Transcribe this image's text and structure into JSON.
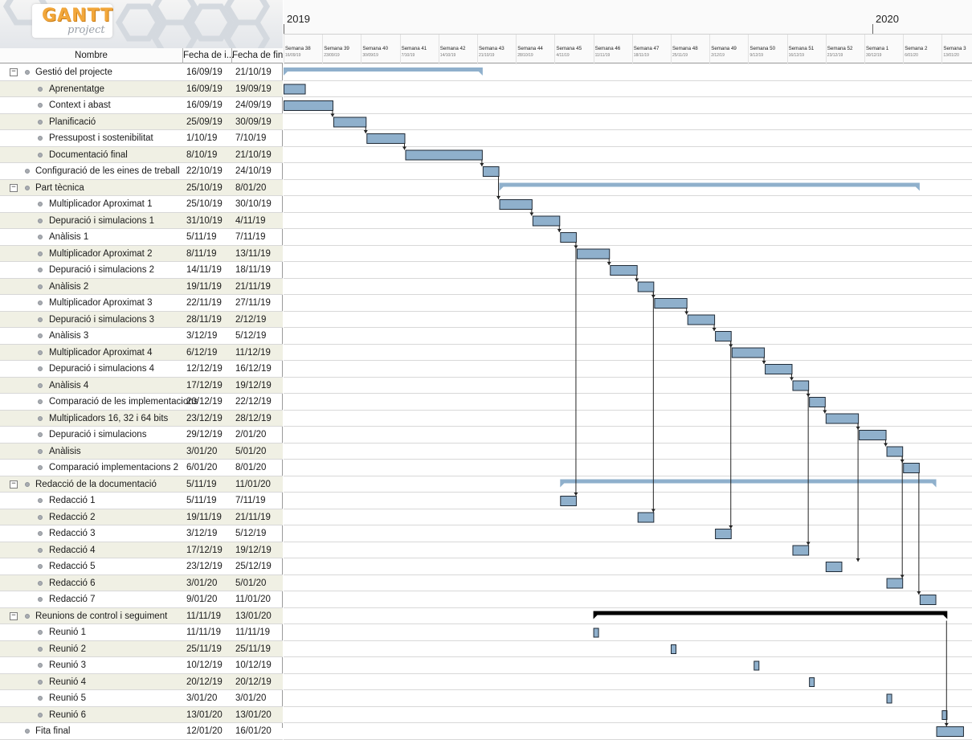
{
  "app": {
    "logo_text": "GANTT",
    "logo_sub": "project"
  },
  "table": {
    "columns": {
      "name": "Nombre",
      "start": "Fecha de i...",
      "end": "Fecha de fin"
    },
    "tasks": [
      {
        "name": "Gestió del projecte",
        "start": "16/09/19",
        "end": "21/10/19",
        "level": 0,
        "toggle": "−"
      },
      {
        "name": "Aprenentatge",
        "start": "16/09/19",
        "end": "19/09/19",
        "level": 1
      },
      {
        "name": "Context i abast",
        "start": "16/09/19",
        "end": "24/09/19",
        "level": 1
      },
      {
        "name": "Planificació",
        "start": "25/09/19",
        "end": "30/09/19",
        "level": 1
      },
      {
        "name": "Pressupost i sostenibilitat",
        "start": "1/10/19",
        "end": "7/10/19",
        "level": 1
      },
      {
        "name": "Documentació final",
        "start": "8/10/19",
        "end": "21/10/19",
        "level": 1
      },
      {
        "name": "Configuració de les eines de treball",
        "start": "22/10/19",
        "end": "24/10/19",
        "level": 0
      },
      {
        "name": "Part tècnica",
        "start": "25/10/19",
        "end": "8/01/20",
        "level": 0,
        "toggle": "−"
      },
      {
        "name": "Multiplicador Aproximat 1",
        "start": "25/10/19",
        "end": "30/10/19",
        "level": 1
      },
      {
        "name": "Depuració i simulacions 1",
        "start": "31/10/19",
        "end": "4/11/19",
        "level": 1
      },
      {
        "name": "Anàlisis 1",
        "start": "5/11/19",
        "end": "7/11/19",
        "level": 1
      },
      {
        "name": "Multiplicador Aproximat 2",
        "start": "8/11/19",
        "end": "13/11/19",
        "level": 1
      },
      {
        "name": "Depuració i simulacions 2",
        "start": "14/11/19",
        "end": "18/11/19",
        "level": 1
      },
      {
        "name": "Anàlisis 2",
        "start": "19/11/19",
        "end": "21/11/19",
        "level": 1
      },
      {
        "name": "Multiplicador Aproximat 3",
        "start": "22/11/19",
        "end": "27/11/19",
        "level": 1
      },
      {
        "name": "Depuració i simulacions 3",
        "start": "28/11/19",
        "end": "2/12/19",
        "level": 1
      },
      {
        "name": "Anàlisis 3",
        "start": "3/12/19",
        "end": "5/12/19",
        "level": 1
      },
      {
        "name": "Multiplicador Aproximat 4",
        "start": "6/12/19",
        "end": "11/12/19",
        "level": 1
      },
      {
        "name": "Depuració i simulacions 4",
        "start": "12/12/19",
        "end": "16/12/19",
        "level": 1
      },
      {
        "name": "Anàlisis 4",
        "start": "17/12/19",
        "end": "19/12/19",
        "level": 1
      },
      {
        "name": "Comparació de les implementacions",
        "start": "20/12/19",
        "end": "22/12/19",
        "level": 1
      },
      {
        "name": "Multiplicadors 16, 32 i 64 bits",
        "start": "23/12/19",
        "end": "28/12/19",
        "level": 1
      },
      {
        "name": "Depuració i simulacions",
        "start": "29/12/19",
        "end": "2/01/20",
        "level": 1
      },
      {
        "name": "Anàlisis",
        "start": "3/01/20",
        "end": "5/01/20",
        "level": 1
      },
      {
        "name": "Comparació implementacions 2",
        "start": "6/01/20",
        "end": "8/01/20",
        "level": 1
      },
      {
        "name": "Redacció de la documentació",
        "start": "5/11/19",
        "end": "11/01/20",
        "level": 0,
        "toggle": "−"
      },
      {
        "name": "Redacció 1",
        "start": "5/11/19",
        "end": "7/11/19",
        "level": 1
      },
      {
        "name": "Redacció 2",
        "start": "19/11/19",
        "end": "21/11/19",
        "level": 1
      },
      {
        "name": "Redacció 3",
        "start": "3/12/19",
        "end": "5/12/19",
        "level": 1
      },
      {
        "name": "Redacció 4",
        "start": "17/12/19",
        "end": "19/12/19",
        "level": 1
      },
      {
        "name": "Redacció 5",
        "start": "23/12/19",
        "end": "25/12/19",
        "level": 1
      },
      {
        "name": "Redacció 6",
        "start": "3/01/20",
        "end": "5/01/20",
        "level": 1
      },
      {
        "name": "Redacció 7",
        "start": "9/01/20",
        "end": "11/01/20",
        "level": 1
      },
      {
        "name": "Reunions de control i seguiment",
        "start": "11/11/19",
        "end": "13/01/20",
        "level": 0,
        "toggle": "−"
      },
      {
        "name": "Reunió 1",
        "start": "11/11/19",
        "end": "11/11/19",
        "level": 1
      },
      {
        "name": "Reunió 2",
        "start": "25/11/19",
        "end": "25/11/19",
        "level": 1
      },
      {
        "name": "Reunió 3",
        "start": "10/12/19",
        "end": "10/12/19",
        "level": 1
      },
      {
        "name": "Reunió 4",
        "start": "20/12/19",
        "end": "20/12/19",
        "level": 1
      },
      {
        "name": "Reunió 5",
        "start": "3/01/20",
        "end": "3/01/20",
        "level": 1
      },
      {
        "name": "Reunió 6",
        "start": "13/01/20",
        "end": "13/01/20",
        "level": 1
      },
      {
        "name": "Fita final",
        "start": "12/01/20",
        "end": "16/01/20",
        "level": 0
      }
    ]
  },
  "timeline": {
    "years": [
      "2019",
      "2020"
    ],
    "weeks": [
      {
        "label": "Semana 38",
        "date": "16/09/19"
      },
      {
        "label": "Semana 39",
        "date": "23/09/19"
      },
      {
        "label": "Semana 40",
        "date": "30/09/19"
      },
      {
        "label": "Semana 41",
        "date": "7/10/19"
      },
      {
        "label": "Semana 42",
        "date": "14/10/19"
      },
      {
        "label": "Semana 43",
        "date": "21/10/19"
      },
      {
        "label": "Semana 44",
        "date": "28/10/19"
      },
      {
        "label": "Semana 45",
        "date": "4/11/19"
      },
      {
        "label": "Semana 46",
        "date": "11/11/19"
      },
      {
        "label": "Semana 47",
        "date": "18/11/19"
      },
      {
        "label": "Semana 48",
        "date": "25/11/19"
      },
      {
        "label": "Semana 49",
        "date": "2/12/19"
      },
      {
        "label": "Semana 50",
        "date": "9/12/19"
      },
      {
        "label": "Semana 51",
        "date": "16/12/19"
      },
      {
        "label": "Semana 52",
        "date": "23/12/19"
      },
      {
        "label": "Semana 1",
        "date": "30/12/19"
      },
      {
        "label": "Semana 2",
        "date": "6/01/20"
      },
      {
        "label": "Semana 3",
        "date": "13/01/20"
      }
    ]
  },
  "colors": {
    "task_bar": "#8fb0cc",
    "task_border": "#1f2a36",
    "summary_bar": "#8fb0cc",
    "summary_dark": "#000000",
    "row_alt": "#f0f0e4",
    "arrow": "#222222"
  }
}
